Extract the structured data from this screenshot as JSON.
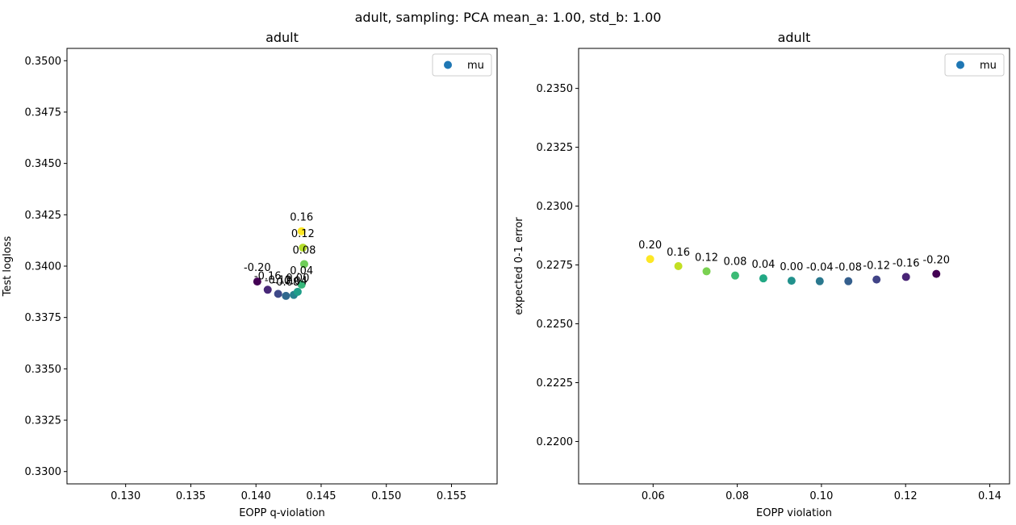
{
  "suptitle": "adult, sampling: PCA mean_a: 1.00, std_b: 1.00",
  "legend_color": "#1f77b4",
  "chart_data": [
    {
      "type": "scatter",
      "title": "adult",
      "xlabel": "EOPP q-violation",
      "ylabel": "Test logloss",
      "xlim": [
        0.1255,
        0.1585
      ],
      "ylim": [
        0.3294,
        0.3506
      ],
      "xticks": [
        0.13,
        0.135,
        0.14,
        0.145,
        0.15,
        0.155
      ],
      "xtick_labels": [
        "0.130",
        "0.135",
        "0.140",
        "0.145",
        "0.150",
        "0.155"
      ],
      "yticks": [
        0.33,
        0.3325,
        0.335,
        0.3375,
        0.34,
        0.3425,
        0.345,
        0.3475,
        0.35
      ],
      "ytick_labels": [
        "0.3300",
        "0.3325",
        "0.3350",
        "0.3375",
        "0.3400",
        "0.3425",
        "0.3450",
        "0.3475",
        "0.3500"
      ],
      "legend": {
        "label": "mu",
        "position": "upper right"
      },
      "points": [
        {
          "mu": -0.2,
          "label": "-0.20",
          "x": 0.1401,
          "y": 0.33925,
          "color": "#440154"
        },
        {
          "mu": -0.16,
          "label": "-0.16",
          "x": 0.1409,
          "y": 0.33885,
          "color": "#482878"
        },
        {
          "mu": -0.12,
          "label": "-0.12",
          "x": 0.1417,
          "y": 0.33865,
          "color": "#3e4989"
        },
        {
          "mu": -0.08,
          "label": "-0.08",
          "x": 0.1423,
          "y": 0.33855,
          "color": "#31688e"
        },
        {
          "mu": -0.04,
          "label": "-0.04",
          "x": 0.1429,
          "y": 0.3386,
          "color": "#26828e"
        },
        {
          "mu": 0.0,
          "label": "0.00",
          "x": 0.1432,
          "y": 0.33875,
          "color": "#1f9e89"
        },
        {
          "mu": 0.04,
          "label": "0.04",
          "x": 0.1435,
          "y": 0.3391,
          "color": "#35b779"
        },
        {
          "mu": 0.08,
          "label": "0.08",
          "x": 0.1437,
          "y": 0.3401,
          "color": "#6ece58"
        },
        {
          "mu": 0.12,
          "label": "0.12",
          "x": 0.1436,
          "y": 0.3409,
          "color": "#b5de2b"
        },
        {
          "mu": 0.16,
          "label": "0.16",
          "x": 0.1435,
          "y": 0.3417,
          "color": "#fde725"
        }
      ]
    },
    {
      "type": "scatter",
      "title": "adult",
      "xlabel": "EOPP violation",
      "ylabel": "expected 0-1 error",
      "xlim": [
        0.0423,
        0.1447
      ],
      "ylim": [
        0.2182,
        0.2367
      ],
      "xticks": [
        0.06,
        0.08,
        0.1,
        0.12,
        0.14
      ],
      "xtick_labels": [
        "0.06",
        "0.08",
        "0.10",
        "0.12",
        "0.14"
      ],
      "yticks": [
        0.22,
        0.2225,
        0.225,
        0.2275,
        0.23,
        0.2325,
        0.235
      ],
      "ytick_labels": [
        "0.2200",
        "0.2225",
        "0.2250",
        "0.2275",
        "0.2300",
        "0.2325",
        "0.2350"
      ],
      "legend": {
        "label": "mu",
        "position": "upper right"
      },
      "points": [
        {
          "mu": 0.2,
          "label": "0.20",
          "x": 0.0593,
          "y": 0.22775,
          "color": "#fde725"
        },
        {
          "mu": 0.16,
          "label": "0.16",
          "x": 0.066,
          "y": 0.22745,
          "color": "#c2df23"
        },
        {
          "mu": 0.12,
          "label": "0.12",
          "x": 0.0727,
          "y": 0.22723,
          "color": "#7ad151"
        },
        {
          "mu": 0.08,
          "label": "0.08",
          "x": 0.0795,
          "y": 0.22705,
          "color": "#3cbb75"
        },
        {
          "mu": 0.04,
          "label": "0.04",
          "x": 0.0862,
          "y": 0.22693,
          "color": "#22a884"
        },
        {
          "mu": 0.0,
          "label": "0.00",
          "x": 0.0929,
          "y": 0.22683,
          "color": "#21918c"
        },
        {
          "mu": -0.04,
          "label": "-0.04",
          "x": 0.0996,
          "y": 0.22681,
          "color": "#2a788e"
        },
        {
          "mu": -0.08,
          "label": "-0.08",
          "x": 0.1064,
          "y": 0.22681,
          "color": "#355f8d"
        },
        {
          "mu": -0.12,
          "label": "-0.12",
          "x": 0.1131,
          "y": 0.22688,
          "color": "#414487"
        },
        {
          "mu": -0.16,
          "label": "-0.16",
          "x": 0.1201,
          "y": 0.22699,
          "color": "#482475"
        },
        {
          "mu": -0.2,
          "label": "-0.20",
          "x": 0.1273,
          "y": 0.22712,
          "color": "#440154"
        }
      ]
    }
  ]
}
